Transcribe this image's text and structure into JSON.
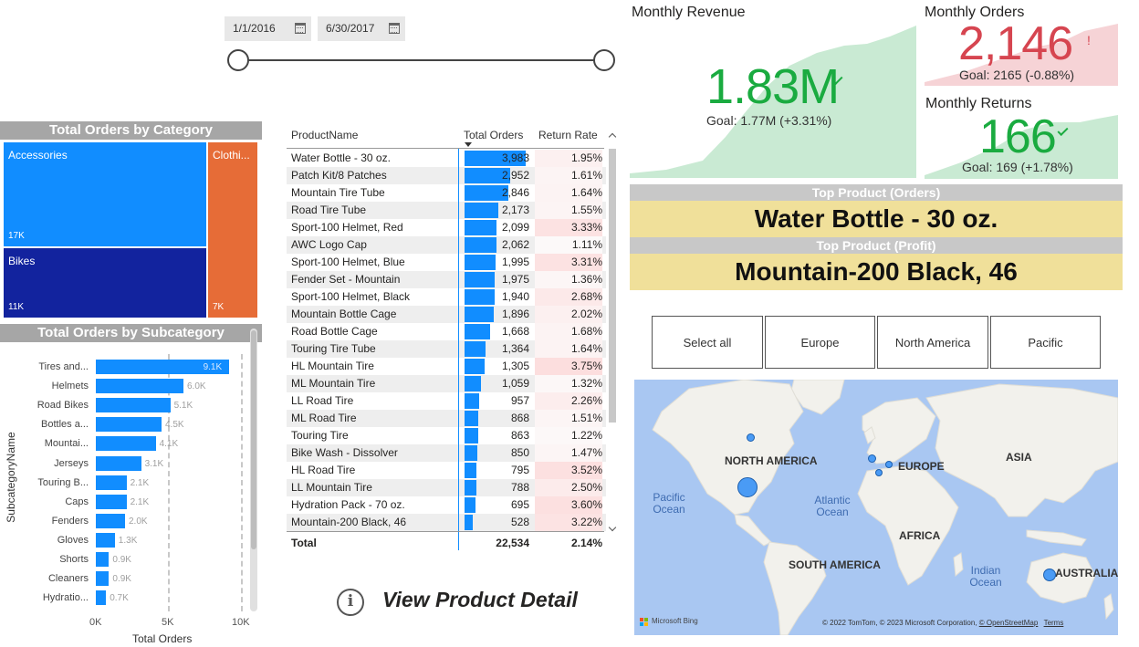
{
  "date_slicer": {
    "start": "1/1/2016",
    "end": "6/30/2017"
  },
  "treemap": {
    "title": "Total Orders by Category",
    "cells": [
      {
        "label": "Accessories",
        "value": "17K",
        "color": "#118dff"
      },
      {
        "label": "Bikes",
        "value": "11K",
        "color": "#12239e"
      },
      {
        "label": "Clothi...",
        "value": "7K",
        "color": "#e66c37"
      }
    ]
  },
  "subcategory": {
    "title": "Total Orders by Subcategory",
    "y_axis_title": "SubcategoryName",
    "x_axis_title": "Total Orders",
    "ticks": [
      "0K",
      "5K",
      "10K"
    ],
    "rows": [
      {
        "label": "Tires and...",
        "value": 9.1,
        "value_label": "9.1K"
      },
      {
        "label": "Helmets",
        "value": 6.0,
        "value_label": "6.0K"
      },
      {
        "label": "Road Bikes",
        "value": 5.1,
        "value_label": "5.1K"
      },
      {
        "label": "Bottles a...",
        "value": 4.5,
        "value_label": "4.5K"
      },
      {
        "label": "Mountai...",
        "value": 4.1,
        "value_label": "4.1K"
      },
      {
        "label": "Jerseys",
        "value": 3.1,
        "value_label": "3.1K"
      },
      {
        "label": "Touring B...",
        "value": 2.1,
        "value_label": "2.1K"
      },
      {
        "label": "Caps",
        "value": 2.1,
        "value_label": "2.1K"
      },
      {
        "label": "Fenders",
        "value": 2.0,
        "value_label": "2.0K"
      },
      {
        "label": "Gloves",
        "value": 1.3,
        "value_label": "1.3K"
      },
      {
        "label": "Shorts",
        "value": 0.9,
        "value_label": "0.9K"
      },
      {
        "label": "Cleaners",
        "value": 0.9,
        "value_label": "0.9K"
      },
      {
        "label": "Hydratio...",
        "value": 0.7,
        "value_label": "0.7K"
      }
    ]
  },
  "table": {
    "headers": {
      "name": "ProductName",
      "orders": "Total Orders",
      "rate": "Return Rate"
    },
    "rows": [
      {
        "name": "Water Bottle - 30 oz.",
        "orders": "3,983",
        "orders_num": 3983,
        "rate": "1.95%",
        "rate_num": 1.95
      },
      {
        "name": "Patch Kit/8 Patches",
        "orders": "2,952",
        "orders_num": 2952,
        "rate": "1.61%",
        "rate_num": 1.61
      },
      {
        "name": "Mountain Tire Tube",
        "orders": "2,846",
        "orders_num": 2846,
        "rate": "1.64%",
        "rate_num": 1.64
      },
      {
        "name": "Road Tire Tube",
        "orders": "2,173",
        "orders_num": 2173,
        "rate": "1.55%",
        "rate_num": 1.55
      },
      {
        "name": "Sport-100 Helmet, Red",
        "orders": "2,099",
        "orders_num": 2099,
        "rate": "3.33%",
        "rate_num": 3.33
      },
      {
        "name": "AWC Logo Cap",
        "orders": "2,062",
        "orders_num": 2062,
        "rate": "1.11%",
        "rate_num": 1.11
      },
      {
        "name": "Sport-100 Helmet, Blue",
        "orders": "1,995",
        "orders_num": 1995,
        "rate": "3.31%",
        "rate_num": 3.31
      },
      {
        "name": "Fender Set - Mountain",
        "orders": "1,975",
        "orders_num": 1975,
        "rate": "1.36%",
        "rate_num": 1.36
      },
      {
        "name": "Sport-100 Helmet, Black",
        "orders": "1,940",
        "orders_num": 1940,
        "rate": "2.68%",
        "rate_num": 2.68
      },
      {
        "name": "Mountain Bottle Cage",
        "orders": "1,896",
        "orders_num": 1896,
        "rate": "2.02%",
        "rate_num": 2.02
      },
      {
        "name": "Road Bottle Cage",
        "orders": "1,668",
        "orders_num": 1668,
        "rate": "1.68%",
        "rate_num": 1.68
      },
      {
        "name": "Touring Tire Tube",
        "orders": "1,364",
        "orders_num": 1364,
        "rate": "1.64%",
        "rate_num": 1.64
      },
      {
        "name": "HL Mountain Tire",
        "orders": "1,305",
        "orders_num": 1305,
        "rate": "3.75%",
        "rate_num": 3.75
      },
      {
        "name": "ML Mountain Tire",
        "orders": "1,059",
        "orders_num": 1059,
        "rate": "1.32%",
        "rate_num": 1.32
      },
      {
        "name": "LL Road Tire",
        "orders": "957",
        "orders_num": 957,
        "rate": "2.26%",
        "rate_num": 2.26
      },
      {
        "name": "ML Road Tire",
        "orders": "868",
        "orders_num": 868,
        "rate": "1.51%",
        "rate_num": 1.51
      },
      {
        "name": "Touring Tire",
        "orders": "863",
        "orders_num": 863,
        "rate": "1.22%",
        "rate_num": 1.22
      },
      {
        "name": "Bike Wash - Dissolver",
        "orders": "850",
        "orders_num": 850,
        "rate": "1.47%",
        "rate_num": 1.47
      },
      {
        "name": "HL Road Tire",
        "orders": "795",
        "orders_num": 795,
        "rate": "3.52%",
        "rate_num": 3.52
      },
      {
        "name": "LL Mountain Tire",
        "orders": "788",
        "orders_num": 788,
        "rate": "2.50%",
        "rate_num": 2.5
      },
      {
        "name": "Hydration Pack - 70 oz.",
        "orders": "695",
        "orders_num": 695,
        "rate": "3.60%",
        "rate_num": 3.6
      },
      {
        "name": "Mountain-200 Black, 46",
        "orders": "528",
        "orders_num": 528,
        "rate": "3.22%",
        "rate_num": 3.22
      }
    ],
    "total": {
      "label": "Total",
      "orders": "22,534",
      "rate": "2.14%"
    }
  },
  "view_detail": {
    "label": "View Product Detail",
    "icon": "info-icon",
    "glyph": "i"
  },
  "kpi": {
    "revenue": {
      "title": "Monthly Revenue",
      "value": "1.83M",
      "goal": "Goal: 1.77M (+3.31%)",
      "status": "good",
      "color": "#1aab40"
    },
    "orders": {
      "title": "Monthly Orders",
      "value": "2,146",
      "goal": "Goal: 2165 (-0.88%)",
      "status": "bad",
      "color": "#d64550"
    },
    "returns": {
      "title": "Monthly Returns",
      "value": "166",
      "goal": "Goal: 169 (+1.78%)",
      "status": "good",
      "color": "#1aab40"
    }
  },
  "top_product": {
    "orders_title": "Top Product (Orders)",
    "orders_value": "Water Bottle - 30 oz.",
    "profit_title": "Top Product (Profit)",
    "profit_value": "Mountain-200 Black, 46"
  },
  "region_slicer": [
    "Select all",
    "Europe",
    "North America",
    "Pacific"
  ],
  "map": {
    "continents": [
      "NORTH AMERICA",
      "SOUTH AMERICA",
      "EUROPE",
      "AFRICA",
      "ASIA",
      "AUSTRALIA"
    ],
    "oceans": {
      "pacific": "Pacific Ocean",
      "atlantic": "Atlantic Ocean",
      "indian": "Indian Ocean"
    },
    "brand": "Microsoft Bing",
    "attribution": "© 2022 TomTom, © 2023 Microsoft Corporation,",
    "osm": "© OpenStreetMap",
    "terms": "Terms"
  }
}
